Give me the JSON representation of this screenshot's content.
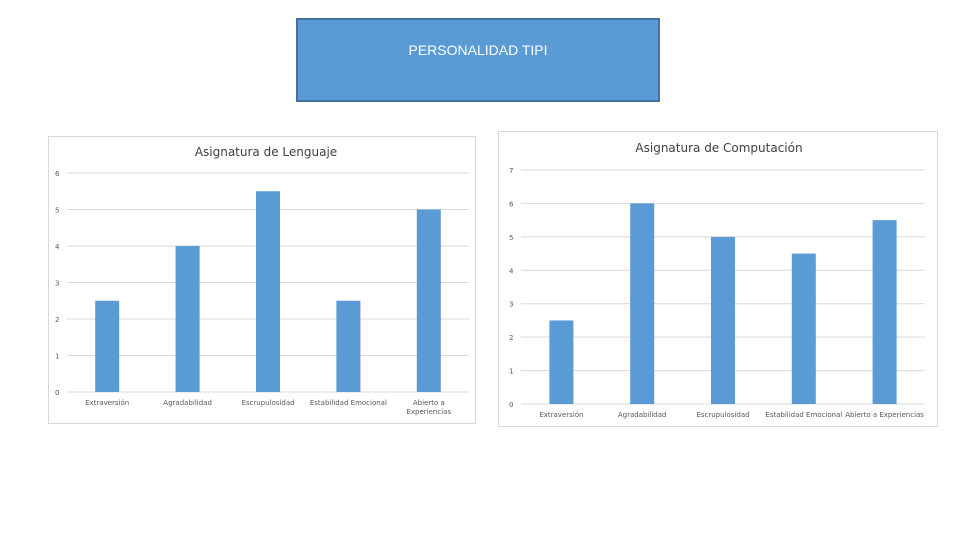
{
  "header": {
    "title": "PERSONALIDAD TIPI"
  },
  "chart_data": [
    {
      "type": "bar",
      "title": "Asignatura de Lenguaje",
      "categories": [
        "Extraversión",
        "Agradabilidad",
        "Escrupulosidad",
        "Estabilidad Emocional",
        "Abierto a Experiencias"
      ],
      "series": [
        {
          "values": [
            2.5,
            4,
            5.5,
            2.5,
            5
          ]
        }
      ],
      "yticks": [
        "0",
        "1",
        "2",
        "3",
        "4",
        "5",
        "6"
      ],
      "ylim": [
        0,
        6
      ],
      "grid": true,
      "color": "#5b9bd5"
    },
    {
      "type": "bar",
      "title": "Asignatura de Computación",
      "categories": [
        "Extraversión",
        "Agradabilidad",
        "Escrupulosidad",
        "Estabilidad Emocional",
        "Abierto a Experiencias"
      ],
      "series": [
        {
          "values": [
            2.5,
            6,
            5,
            4.5,
            5.5
          ]
        }
      ],
      "yticks": [
        "0",
        "1",
        "2",
        "3",
        "4",
        "5",
        "6",
        "7"
      ],
      "ylim": [
        0,
        7
      ],
      "grid": true,
      "color": "#5b9bd5"
    }
  ]
}
